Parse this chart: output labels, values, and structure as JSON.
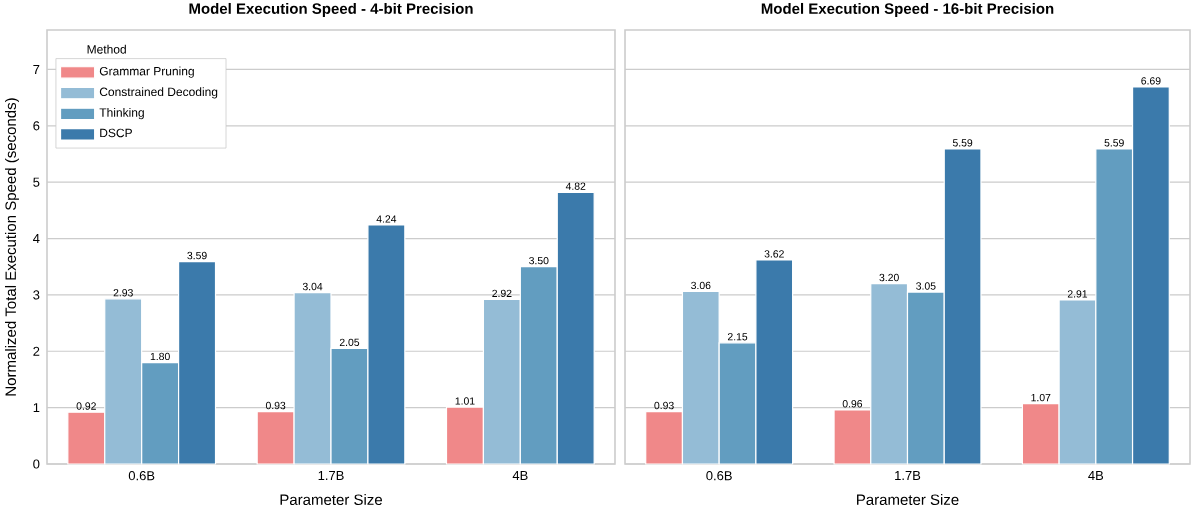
{
  "chart_data": [
    {
      "type": "bar",
      "title": "Model Execution Speed - 4-bit Precision",
      "xlabel": "Parameter Size",
      "ylabel": "Normalized Total Execution Speed (seconds)",
      "legend_title": "Method",
      "categories": [
        "0.6B",
        "1.7B",
        "4B"
      ],
      "series": [
        {
          "name": "Grammar Pruning",
          "color": "#f08889",
          "values": [
            0.92,
            0.93,
            1.01
          ],
          "value_labels": [
            "0.92",
            "0.93",
            "1.01"
          ]
        },
        {
          "name": "Constrained Decoding",
          "color": "#94bcd6",
          "values": [
            2.93,
            3.04,
            2.92
          ],
          "value_labels": [
            "2.93",
            "3.04",
            "2.92"
          ]
        },
        {
          "name": "Thinking",
          "color": "#629dc0",
          "values": [
            1.8,
            2.05,
            3.5
          ],
          "value_labels": [
            "1.80",
            "2.05",
            "3.50"
          ]
        },
        {
          "name": "DSCP",
          "color": "#3b7aab",
          "values": [
            3.59,
            4.24,
            4.82
          ],
          "value_labels": [
            "3.59",
            "4.24",
            "4.82"
          ]
        }
      ],
      "ylim": [
        0,
        7.7
      ],
      "yticks": [
        0,
        1,
        2,
        3,
        4,
        5,
        6,
        7
      ],
      "grid": "y",
      "legend": "top left"
    },
    {
      "type": "bar",
      "title": "Model Execution Speed - 16-bit Precision",
      "xlabel": "Parameter Size",
      "categories": [
        "0.6B",
        "1.7B",
        "4B"
      ],
      "series": [
        {
          "color": "#f08889",
          "values": [
            0.93,
            0.96,
            1.07
          ],
          "value_labels": [
            "0.93",
            "0.96",
            "1.07"
          ]
        },
        {
          "color": "#94bcd6",
          "values": [
            3.06,
            3.2,
            2.91
          ],
          "value_labels": [
            "3.06",
            "3.20",
            "2.91"
          ]
        },
        {
          "color": "#629dc0",
          "values": [
            2.15,
            3.05,
            5.59
          ],
          "value_labels": [
            "2.15",
            "3.05",
            "5.59"
          ]
        },
        {
          "color": "#3b7aab",
          "values": [
            3.62,
            5.59,
            6.69
          ],
          "value_labels": [
            "3.62",
            "5.59",
            "6.69"
          ]
        }
      ],
      "ylim": [
        0,
        7.7
      ],
      "yticks": [
        0,
        1,
        2,
        3,
        4,
        5,
        6,
        7
      ],
      "grid": "y",
      "tick_labels": "x"
    }
  ]
}
